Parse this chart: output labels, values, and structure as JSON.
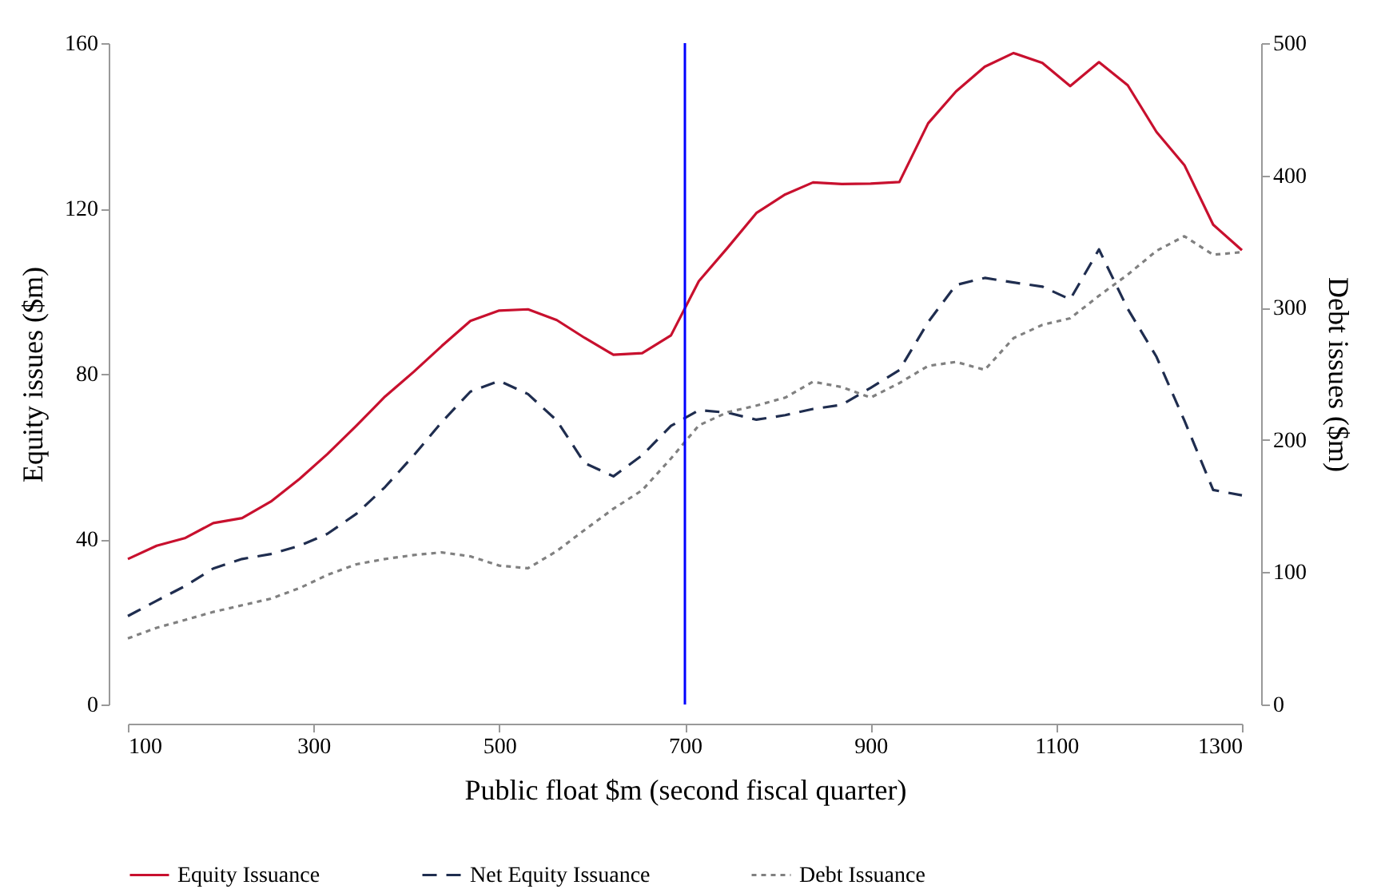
{
  "chart_data": {
    "type": "line",
    "xlabel": "Public float $m (second fiscal quarter)",
    "ylabel": "Equity issues ($m)",
    "y2label": "Debt issues ($m)",
    "x": [
      100,
      131,
      162,
      192,
      223,
      254,
      285,
      315,
      346,
      377,
      408,
      438,
      469,
      500,
      531,
      562,
      592,
      623,
      654,
      685,
      715,
      746,
      777,
      808,
      838,
      869,
      900,
      931,
      962,
      992,
      1023,
      1054,
      1085,
      1115,
      1146,
      1177,
      1208,
      1238,
      1269,
      1300
    ],
    "series": [
      {
        "name": "Equity Issuance",
        "color": "#c8102e",
        "line_style": "solid",
        "values": [
          35.2,
          38.4,
          40.3,
          43.9,
          45.1,
          49.1,
          54.6,
          60.6,
          67.4,
          74.5,
          80.5,
          86.7,
          92.8,
          95.3,
          95.6,
          93.0,
          88.7,
          84.6,
          85.0,
          89.3,
          102.4,
          110.5,
          118.9,
          123.4,
          126.3,
          125.9,
          126.0,
          126.4,
          140.6,
          148.3,
          154.3,
          157.6,
          155.2,
          149.6,
          155.4,
          149.8,
          138.5,
          130.5,
          116.1,
          109.9
        ]
      },
      {
        "name": "Net Equity Issuance",
        "color": "#1f2d4f",
        "line_style": "dashed",
        "values": [
          21.4,
          25.1,
          28.7,
          32.9,
          35.2,
          36.4,
          38.4,
          41.3,
          46.1,
          52.6,
          60.3,
          68.3,
          75.7,
          78.3,
          75.1,
          68.7,
          58.4,
          55.2,
          60.3,
          67.4,
          71.2,
          70.6,
          68.9,
          70.0,
          71.5,
          72.5,
          76.6,
          80.9,
          92.5,
          101.5,
          103.2,
          102.1,
          101.1,
          98.0,
          110.1,
          95.7,
          84.1,
          68.7,
          51.9,
          50.6
        ]
      },
      {
        "name": "Debt Issuance",
        "color": "#808080",
        "line_style": "dotted",
        "axis": "y2",
        "values": [
          50,
          58,
          64,
          70,
          75,
          80,
          88,
          98,
          106,
          110,
          113,
          115,
          112,
          105,
          103,
          116,
          132,
          148,
          162,
          186,
          211,
          221,
          226,
          232,
          244,
          240,
          232,
          243,
          256,
          259,
          253,
          277,
          287,
          292,
          309,
          325,
          343,
          354,
          340,
          342
        ]
      }
    ],
    "xlim": [
      100,
      1300
    ],
    "xticks": [
      100,
      300,
      500,
      700,
      900,
      1100,
      1300
    ],
    "ylim": [
      0,
      160
    ],
    "yticks": [
      0,
      40,
      80,
      120,
      160
    ],
    "y2lim": [
      0,
      500
    ],
    "y2ticks": [
      0,
      100,
      200,
      300,
      400,
      500
    ],
    "ref_lines": [
      {
        "axis": "x",
        "value": 700,
        "color": "#0000ff"
      }
    ],
    "grid": false,
    "legend": "bottom"
  }
}
